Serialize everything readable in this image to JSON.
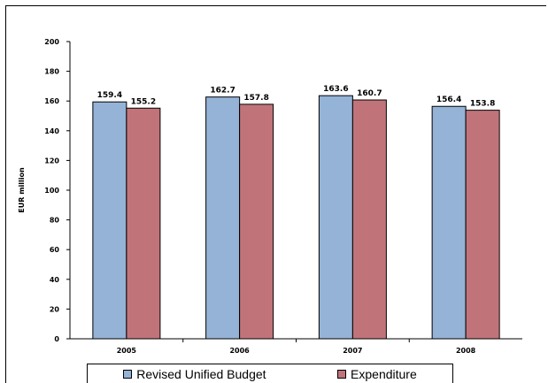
{
  "chart_data": {
    "type": "bar",
    "categories": [
      "2005",
      "2006",
      "2007",
      "2008"
    ],
    "series": [
      {
        "name": "Revised Unified Budget",
        "values": [
          159.4,
          162.7,
          163.6,
          156.4
        ],
        "labels": [
          "159.4",
          "162.7",
          "163.6",
          "156.4"
        ],
        "color": "#95b3d7"
      },
      {
        "name": "Expenditure",
        "values": [
          155.2,
          157.8,
          160.7,
          153.8
        ],
        "labels": [
          "155.2",
          "157.8",
          "160.7",
          "153.8"
        ],
        "color": "#c0747a"
      }
    ],
    "ylabel": "EUR million",
    "ylim": [
      0,
      200
    ],
    "yticks": [
      0,
      20,
      40,
      60,
      80,
      100,
      120,
      140,
      160,
      180,
      200
    ],
    "ytick_labels": [
      "0",
      "20",
      "40",
      "60",
      "80",
      "100",
      "120",
      "140",
      "160",
      "180",
      "200"
    ],
    "grid": false,
    "legend_position": "bottom"
  }
}
